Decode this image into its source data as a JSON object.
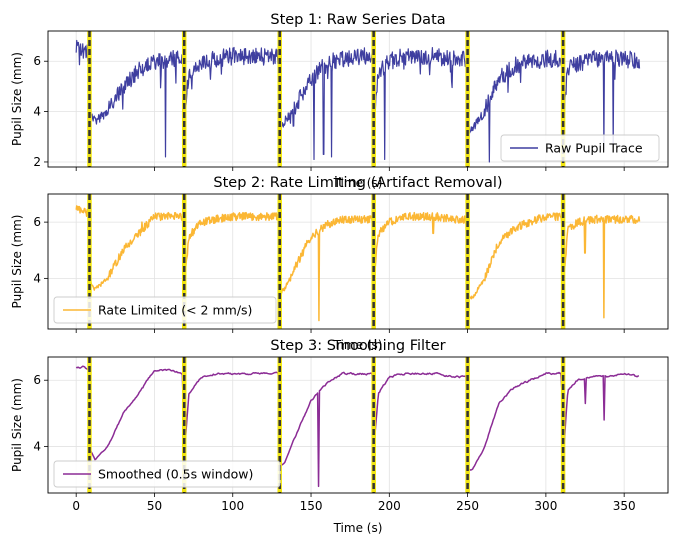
{
  "chart_data": [
    {
      "type": "line",
      "title": "Step 1: Raw Series Data",
      "xlabel": "Time (s)",
      "ylabel": "Pupil Size (mm)",
      "xlim": [
        -18,
        378
      ],
      "ylim": [
        1.8,
        7.2
      ],
      "yticks": [
        2,
        4,
        6
      ],
      "xticks": [
        0,
        50,
        100,
        150,
        200,
        250,
        300,
        350
      ],
      "show_xticklabels": false,
      "grid": true,
      "legend": "lower right",
      "event_markers": [
        8.5,
        69,
        130,
        190,
        250,
        311
      ],
      "series": [
        {
          "name": "Raw Pupil Trace",
          "color": "#3f3fa0",
          "style": "noisy",
          "x": [
            0,
            5,
            8,
            9,
            12,
            20,
            30,
            40,
            50,
            60,
            68,
            69,
            72,
            80,
            90,
            100,
            110,
            120,
            129,
            130,
            133,
            140,
            150,
            160,
            170,
            180,
            189,
            190,
            193,
            200,
            210,
            220,
            230,
            240,
            249,
            250,
            253,
            260,
            270,
            280,
            290,
            300,
            310,
            311,
            314,
            320,
            330,
            340,
            350,
            360
          ],
          "y": [
            6.5,
            6.4,
            6.3,
            4.0,
            3.6,
            4.0,
            5.0,
            5.6,
            6.0,
            6.1,
            6.1,
            3.6,
            5.6,
            5.9,
            6.1,
            6.2,
            6.2,
            6.2,
            6.2,
            3.4,
            3.6,
            4.2,
            5.3,
            5.9,
            6.1,
            6.2,
            6.2,
            3.6,
            5.6,
            6.0,
            6.2,
            6.2,
            6.2,
            6.1,
            6.1,
            3.3,
            3.3,
            3.9,
            5.3,
            5.8,
            6.0,
            6.1,
            6.1,
            3.6,
            5.7,
            5.9,
            6.1,
            6.1,
            6.1,
            6.0
          ],
          "dips": [
            [
              57,
              2.2
            ],
            [
              152,
              2.1
            ],
            [
              158,
              2.3
            ],
            [
              163,
              2.2
            ],
            [
              197,
              2.1
            ],
            [
              264,
              2.0
            ],
            [
              337,
              2.5
            ],
            [
              343,
              2.6
            ]
          ]
        }
      ]
    },
    {
      "type": "line",
      "title": "Step 2: Rate Limiting (Artifact Removal)",
      "xlabel": "Time (s)",
      "ylabel": "Pupil Size (mm)",
      "xlim": [
        -18,
        378
      ],
      "ylim": [
        2.2,
        7.0
      ],
      "yticks": [
        4,
        6
      ],
      "xticks": [
        0,
        50,
        100,
        150,
        200,
        250,
        300,
        350
      ],
      "show_xticklabels": false,
      "grid": true,
      "legend": "lower left",
      "event_markers": [
        8.5,
        69,
        130,
        190,
        250,
        311
      ],
      "series": [
        {
          "name": "Rate Limited (< 2 mm/s)",
          "color": "#fbb735",
          "style": "medium",
          "x": [
            0,
            5,
            8,
            9,
            12,
            20,
            30,
            40,
            50,
            60,
            68,
            69,
            72,
            80,
            90,
            100,
            110,
            120,
            129,
            130,
            133,
            140,
            150,
            160,
            170,
            180,
            189,
            190,
            193,
            200,
            210,
            220,
            230,
            240,
            249,
            250,
            253,
            260,
            270,
            280,
            290,
            300,
            310,
            311,
            314,
            320,
            330,
            340,
            350,
            360
          ],
          "y": [
            6.5,
            6.4,
            6.3,
            3.9,
            3.6,
            4.0,
            5.0,
            5.6,
            6.2,
            6.2,
            6.2,
            3.8,
            5.5,
            6.0,
            6.1,
            6.2,
            6.2,
            6.2,
            6.2,
            3.5,
            3.6,
            4.4,
            5.5,
            5.9,
            6.1,
            6.1,
            6.1,
            3.9,
            5.6,
            6.0,
            6.2,
            6.2,
            6.2,
            6.1,
            6.1,
            3.4,
            3.3,
            3.9,
            5.3,
            5.8,
            6.0,
            6.2,
            6.2,
            3.7,
            5.7,
            6.0,
            6.1,
            6.1,
            6.1,
            6.1
          ],
          "dips": [
            [
              155,
              2.5
            ],
            [
              337,
              2.6
            ],
            [
              228,
              5.6
            ],
            [
              42,
              6.0
            ],
            [
              325,
              4.9
            ]
          ]
        }
      ]
    },
    {
      "type": "line",
      "title": "Step 3: Smoothing Filter",
      "xlabel": "Time (s)",
      "ylabel": "Pupil Size (mm)",
      "xlim": [
        -18,
        378
      ],
      "ylim": [
        2.6,
        6.7
      ],
      "yticks": [
        4,
        6
      ],
      "xticks": [
        0,
        50,
        100,
        150,
        200,
        250,
        300,
        350
      ],
      "show_xticklabels": true,
      "grid": true,
      "legend": "lower left",
      "event_markers": [
        8.5,
        69,
        130,
        190,
        250,
        311
      ],
      "series": [
        {
          "name": "Smoothed (0.5s window)",
          "color": "#8b2c95",
          "style": "smooth",
          "x": [
            0,
            5,
            8,
            9,
            12,
            20,
            30,
            40,
            50,
            60,
            68,
            69,
            72,
            80,
            90,
            100,
            110,
            120,
            129,
            130,
            133,
            140,
            150,
            160,
            170,
            180,
            189,
            190,
            193,
            200,
            210,
            220,
            230,
            240,
            249,
            250,
            253,
            260,
            270,
            280,
            290,
            300,
            310,
            311,
            314,
            320,
            330,
            340,
            350,
            360
          ],
          "y": [
            6.4,
            6.4,
            6.3,
            3.9,
            3.6,
            4.0,
            5.0,
            5.6,
            6.3,
            6.3,
            6.2,
            3.7,
            5.6,
            6.1,
            6.2,
            6.2,
            6.2,
            6.2,
            6.2,
            3.4,
            3.5,
            4.3,
            5.4,
            5.9,
            6.2,
            6.2,
            6.2,
            3.9,
            5.6,
            6.1,
            6.2,
            6.2,
            6.2,
            6.1,
            6.1,
            3.3,
            3.3,
            3.9,
            5.3,
            5.8,
            6.0,
            6.2,
            6.2,
            3.6,
            5.7,
            6.0,
            6.1,
            6.1,
            6.2,
            6.1
          ],
          "dips": [
            [
              155,
              2.8
            ],
            [
              337,
              4.8
            ],
            [
              325,
              5.3
            ]
          ]
        }
      ]
    }
  ]
}
